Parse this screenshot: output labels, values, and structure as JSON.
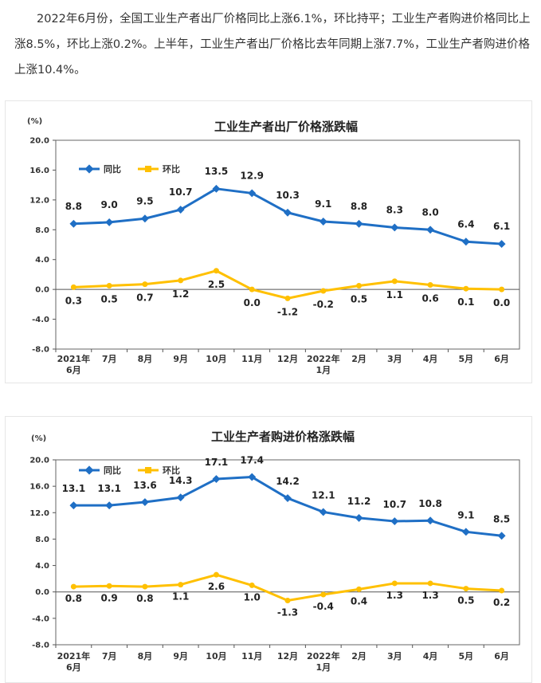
{
  "intro_text": "2022年6月份，全国工业生产者出厂价格同比上涨6.1%，环比持平；工业生产者购进价格同比上涨8.5%，环比上涨0.2%。上半年，工业生产者出厂价格比去年同期上涨7.7%，工业生产者购进价格上涨10.4%。",
  "colors": {
    "yoy": "#1f6fc5",
    "mom": "#ffc000"
  },
  "chart_data": [
    {
      "type": "line",
      "title": "工业生产者出厂价格涨跌幅",
      "unit": "(%)",
      "categories": [
        "2021年\n6月",
        "7月",
        "8月",
        "9月",
        "10月",
        "11月",
        "12月",
        "2022年\n1月",
        "2月",
        "3月",
        "4月",
        "5月",
        "6月"
      ],
      "ylim": [
        -8.0,
        20.0
      ],
      "yticks": [
        "20.0",
        "16.0",
        "12.0",
        "8.0",
        "4.0",
        "0.0",
        "-4.0",
        "-8.0"
      ],
      "legend_position": "top-left",
      "series": [
        {
          "name": "同比",
          "values": [
            8.8,
            9.0,
            9.5,
            10.7,
            13.5,
            12.9,
            10.3,
            9.1,
            8.8,
            8.3,
            8.0,
            6.4,
            6.1
          ],
          "labels": [
            "8.8",
            "9.0",
            "9.5",
            "10.7",
            "13.5",
            "12.9",
            "10.3",
            "9.1",
            "8.8",
            "8.3",
            "8.0",
            "6.4",
            "6.1"
          ]
        },
        {
          "name": "环比",
          "values": [
            0.3,
            0.5,
            0.7,
            1.2,
            2.5,
            0.0,
            -1.2,
            -0.2,
            0.5,
            1.1,
            0.6,
            0.1,
            0.0
          ],
          "labels": [
            "0.3",
            "0.5",
            "0.7",
            "1.2",
            "2.5",
            "0.0",
            "-1.2",
            "-0.2",
            "0.5",
            "1.1",
            "0.6",
            "0.1",
            "0.0"
          ]
        }
      ]
    },
    {
      "type": "line",
      "title": "工业生产者购进价格涨跌幅",
      "unit": "(%)",
      "categories": [
        "2021年\n6月",
        "7月",
        "8月",
        "9月",
        "10月",
        "11月",
        "12月",
        "2022年\n1月",
        "2月",
        "3月",
        "4月",
        "5月",
        "6月"
      ],
      "ylim": [
        -8.0,
        20.0
      ],
      "yticks": [
        "20.0",
        "16.0",
        "12.0",
        "8.0",
        "4.0",
        "0.0",
        "-4.0",
        "-8.0"
      ],
      "legend_position": "top-left",
      "series": [
        {
          "name": "同比",
          "values": [
            13.1,
            13.1,
            13.6,
            14.3,
            17.1,
            17.4,
            14.2,
            12.1,
            11.2,
            10.7,
            10.8,
            9.1,
            8.5
          ],
          "labels": [
            "13.1",
            "13.1",
            "13.6",
            "14.3",
            "17.1",
            "17.4",
            "14.2",
            "12.1",
            "11.2",
            "10.7",
            "10.8",
            "9.1",
            "8.5"
          ]
        },
        {
          "name": "环比",
          "values": [
            0.8,
            0.9,
            0.8,
            1.1,
            2.6,
            1.0,
            -1.3,
            -0.4,
            0.4,
            1.3,
            1.3,
            0.5,
            0.2
          ],
          "labels": [
            "0.8",
            "0.9",
            "0.8",
            "1.1",
            "2.6",
            "1.0",
            "-1.3",
            "-0.4",
            "0.4",
            "1.3",
            "1.3",
            "0.5",
            "0.2"
          ]
        }
      ]
    }
  ]
}
